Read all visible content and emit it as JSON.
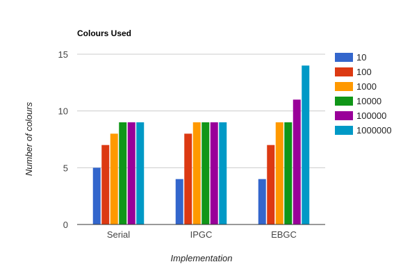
{
  "chart_data": {
    "type": "bar",
    "title": "Colours Used",
    "xlabel": "Implementation",
    "ylabel": "Number of colours",
    "categories": [
      "Serial",
      "IPGC",
      "EBGC"
    ],
    "ylim": [
      0,
      15
    ],
    "yticks": [
      "0",
      "5",
      "10",
      "15"
    ],
    "grid": true,
    "legend_position": "right",
    "series": [
      {
        "name": "10",
        "color": "#3366cc",
        "values": [
          5,
          4,
          4
        ]
      },
      {
        "name": "100",
        "color": "#dc3912",
        "values": [
          7,
          8,
          7
        ]
      },
      {
        "name": "1000",
        "color": "#ff9900",
        "values": [
          8,
          9,
          9
        ]
      },
      {
        "name": "10000",
        "color": "#109618",
        "values": [
          9,
          9,
          9
        ]
      },
      {
        "name": "100000",
        "color": "#990099",
        "values": [
          9,
          9,
          11
        ]
      },
      {
        "name": "1000000",
        "color": "#0099c6",
        "values": [
          9,
          9,
          14
        ]
      }
    ]
  }
}
